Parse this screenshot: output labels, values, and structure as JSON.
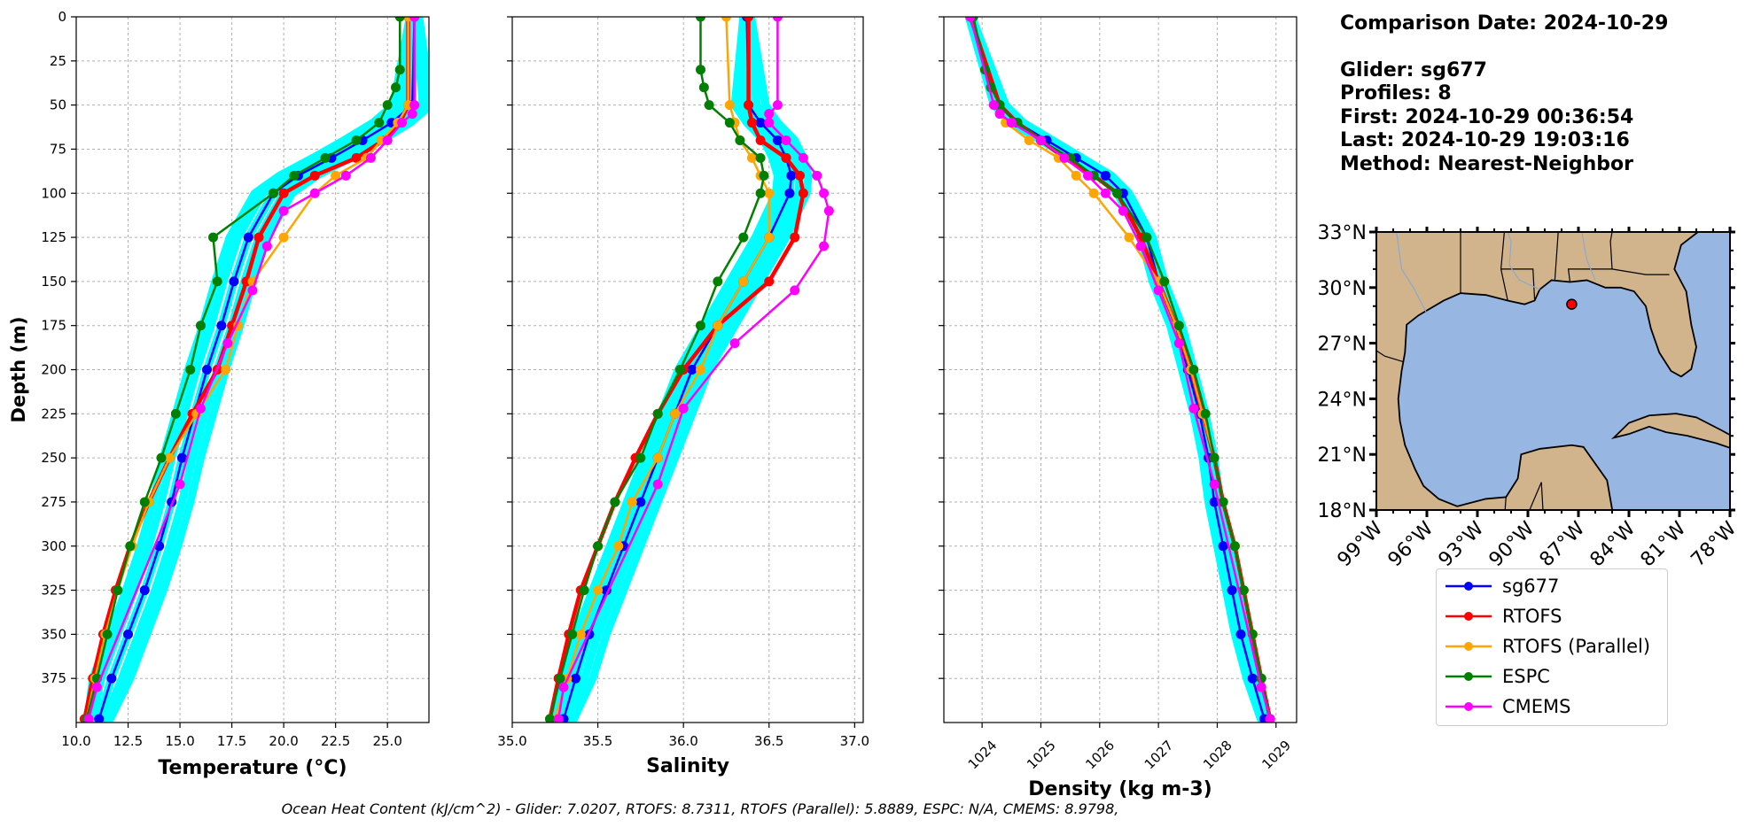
{
  "info": {
    "comparison": "Comparison Date: 2024-10-29",
    "glider": "Glider: sg677",
    "profiles": "Profiles: 8",
    "first": "First: 2024-10-29 00:36:54",
    "last": "Last: 2024-10-29 19:03:16",
    "method": "Method: Nearest-Neighbor"
  },
  "footer": "Ocean Heat Content (kJ/cm^2) - Glider: 7.0207,  RTOFS: 8.7311,  RTOFS (Parallel): 5.8889,  ESPC: N/A,  CMEMS: 8.9798,",
  "legend": [
    {
      "label": "sg677",
      "color": "#0000ff"
    },
    {
      "label": "RTOFS",
      "color": "#ff0000"
    },
    {
      "label": "RTOFS (Parallel)",
      "color": "#ffa500"
    },
    {
      "label": "ESPC",
      "color": "#008000"
    },
    {
      "label": "CMEMS",
      "color": "#ff00ff"
    }
  ],
  "colors": {
    "glider_profiles": "#00ffff",
    "land": "#d2b48c",
    "ocean": "#97b6e1",
    "glider_marker": "#ff0000"
  },
  "chart_data": [
    {
      "type": "line",
      "xlabel": "Temperature (°C)",
      "ylabel": "Depth (m)",
      "xlim": [
        10,
        27
      ],
      "ylim": [
        400,
        0
      ],
      "xticks": [
        "10.0",
        "12.5",
        "15.0",
        "17.5",
        "20.0",
        "22.5",
        "25.0"
      ],
      "yticks": [
        "0",
        "25",
        "50",
        "75",
        "100",
        "125",
        "150",
        "175",
        "200",
        "225",
        "250",
        "275",
        "300",
        "325",
        "350",
        "375"
      ],
      "grid": true,
      "series": [
        {
          "name": "sg677",
          "depth": [
            0,
            50,
            60,
            70,
            80,
            90,
            100,
            125,
            150,
            175,
            200,
            225,
            250,
            275,
            300,
            325,
            350,
            375,
            398
          ],
          "values": [
            26.3,
            26.2,
            25.2,
            23.8,
            22.3,
            20.7,
            19.5,
            18.3,
            17.6,
            17.0,
            16.3,
            15.7,
            15.1,
            14.6,
            14.0,
            13.3,
            12.5,
            11.7,
            11.1
          ]
        },
        {
          "name": "RTOFS",
          "depth": [
            0,
            50,
            60,
            70,
            80,
            90,
            100,
            125,
            150,
            175,
            200,
            225,
            250,
            275,
            300,
            325,
            350,
            375,
            398
          ],
          "values": [
            26.0,
            26.0,
            25.6,
            24.8,
            23.5,
            21.5,
            20.0,
            18.8,
            18.2,
            17.5,
            16.8,
            15.6,
            14.5,
            13.5,
            12.6,
            11.9,
            11.3,
            10.8,
            10.4
          ]
        },
        {
          "name": "RTOFS (Parallel)",
          "depth": [
            0,
            50,
            60,
            70,
            80,
            90,
            100,
            125,
            150,
            175,
            200,
            225,
            250,
            275,
            300,
            325,
            350,
            375,
            398
          ],
          "values": [
            26.0,
            26.0,
            25.5,
            24.7,
            24.0,
            22.5,
            21.5,
            20.0,
            18.5,
            17.8,
            17.2,
            15.8,
            14.5,
            13.5,
            12.7,
            12.0,
            11.4,
            10.9,
            10.5
          ]
        },
        {
          "name": "ESPC",
          "depth": [
            0,
            30,
            40,
            50,
            60,
            70,
            80,
            90,
            100,
            125,
            150,
            175,
            200,
            225,
            250,
            275,
            300,
            325,
            350,
            375,
            398
          ],
          "values": [
            25.6,
            25.6,
            25.4,
            25.0,
            24.6,
            23.5,
            22.0,
            20.5,
            19.5,
            16.6,
            16.8,
            16.0,
            15.5,
            14.8,
            14.1,
            13.3,
            12.6,
            12.0,
            11.5,
            11.0,
            10.5
          ]
        },
        {
          "name": "CMEMS",
          "depth": [
            0,
            50,
            55,
            60,
            70,
            80,
            90,
            100,
            110,
            130,
            155,
            185,
            222,
            265,
            380,
            398
          ],
          "values": [
            26.3,
            26.3,
            26.2,
            25.7,
            25.0,
            24.2,
            23.0,
            21.5,
            20.0,
            19.2,
            18.5,
            17.3,
            16.0,
            15.0,
            11.0,
            10.6
          ]
        }
      ]
    },
    {
      "type": "line",
      "xlabel": "Salinity",
      "xlim": [
        35.0,
        37.05
      ],
      "ylim": [
        400,
        0
      ],
      "xticks": [
        "35.0",
        "35.5",
        "36.0",
        "36.5",
        "37.0"
      ],
      "grid": true,
      "series": [
        {
          "name": "sg677",
          "depth": [
            0,
            50,
            60,
            70,
            80,
            90,
            100,
            125,
            150,
            175,
            200,
            225,
            250,
            275,
            300,
            325,
            350,
            375,
            398
          ],
          "values": [
            36.37,
            36.38,
            36.45,
            36.55,
            36.6,
            36.63,
            36.62,
            36.5,
            36.35,
            36.2,
            36.05,
            35.95,
            35.85,
            35.75,
            35.65,
            35.55,
            35.45,
            35.37,
            35.3
          ]
        },
        {
          "name": "RTOFS",
          "depth": [
            0,
            50,
            60,
            70,
            80,
            90,
            100,
            125,
            150,
            175,
            200,
            225,
            250,
            275,
            300,
            325,
            350,
            375,
            398
          ],
          "values": [
            36.38,
            36.38,
            36.4,
            36.45,
            36.6,
            36.68,
            36.7,
            36.65,
            36.5,
            36.2,
            36.0,
            35.85,
            35.72,
            35.6,
            35.5,
            35.4,
            35.33,
            35.27,
            35.22
          ]
        },
        {
          "name": "RTOFS (Parallel)",
          "depth": [
            0,
            50,
            60,
            70,
            80,
            90,
            100,
            125,
            150,
            175,
            200,
            225,
            250,
            275,
            300,
            325,
            350,
            375,
            398
          ],
          "values": [
            36.25,
            36.27,
            36.3,
            36.33,
            36.4,
            36.45,
            36.5,
            36.5,
            36.35,
            36.2,
            36.1,
            35.95,
            35.85,
            35.7,
            35.62,
            35.5,
            35.4,
            35.32,
            35.25
          ]
        },
        {
          "name": "ESPC",
          "depth": [
            0,
            30,
            40,
            50,
            60,
            70,
            80,
            90,
            100,
            125,
            150,
            175,
            200,
            225,
            250,
            275,
            300,
            325,
            350,
            375,
            398
          ],
          "values": [
            36.1,
            36.1,
            36.12,
            36.15,
            36.27,
            36.33,
            36.45,
            36.47,
            36.45,
            36.35,
            36.2,
            36.1,
            35.98,
            35.85,
            35.75,
            35.6,
            35.5,
            35.42,
            35.35,
            35.28,
            35.22
          ]
        },
        {
          "name": "CMEMS",
          "depth": [
            0,
            50,
            55,
            60,
            70,
            80,
            90,
            100,
            110,
            130,
            155,
            185,
            222,
            265,
            380,
            398
          ],
          "values": [
            36.55,
            36.55,
            36.5,
            36.5,
            36.6,
            36.7,
            36.78,
            36.82,
            36.85,
            36.82,
            36.65,
            36.3,
            36.0,
            35.85,
            35.3,
            35.27
          ]
        }
      ]
    },
    {
      "type": "line",
      "xlabel": "Density (kg m-3)",
      "xlim": [
        1023.35,
        1029.35
      ],
      "ylim": [
        400,
        0
      ],
      "xticks": [
        "1024",
        "1025",
        "1026",
        "1027",
        "1028",
        "1029"
      ],
      "grid": true,
      "series": [
        {
          "name": "sg677",
          "depth": [
            0,
            50,
            60,
            70,
            80,
            90,
            100,
            125,
            150,
            175,
            200,
            225,
            250,
            275,
            300,
            325,
            350,
            375,
            398
          ],
          "values": [
            1023.8,
            1024.3,
            1024.6,
            1025.1,
            1025.6,
            1026.1,
            1026.4,
            1026.8,
            1027.0,
            1027.3,
            1027.5,
            1027.7,
            1027.85,
            1027.95,
            1028.1,
            1028.25,
            1028.4,
            1028.6,
            1028.8
          ]
        },
        {
          "name": "RTOFS",
          "depth": [
            0,
            50,
            60,
            70,
            80,
            90,
            100,
            125,
            150,
            175,
            200,
            225,
            250,
            275,
            300,
            325,
            350,
            375,
            398
          ],
          "values": [
            1023.8,
            1024.3,
            1024.6,
            1025.0,
            1025.4,
            1025.9,
            1026.3,
            1026.7,
            1027.0,
            1027.3,
            1027.55,
            1027.75,
            1027.95,
            1028.1,
            1028.3,
            1028.45,
            1028.6,
            1028.75,
            1028.9
          ]
        },
        {
          "name": "RTOFS (Parallel)",
          "depth": [
            0,
            50,
            60,
            70,
            80,
            90,
            100,
            125,
            150,
            175,
            200,
            225,
            250,
            275,
            300,
            325,
            350,
            375,
            398
          ],
          "values": [
            1023.8,
            1024.2,
            1024.4,
            1024.8,
            1025.3,
            1025.6,
            1025.9,
            1026.5,
            1027.0,
            1027.3,
            1027.55,
            1027.75,
            1027.95,
            1028.1,
            1028.3,
            1028.45,
            1028.6,
            1028.75,
            1028.9
          ]
        },
        {
          "name": "ESPC",
          "depth": [
            0,
            30,
            40,
            50,
            60,
            70,
            80,
            90,
            100,
            125,
            150,
            175,
            200,
            225,
            250,
            275,
            300,
            325,
            350,
            375,
            398
          ],
          "values": [
            1023.85,
            1024.05,
            1024.15,
            1024.3,
            1024.6,
            1025.0,
            1025.5,
            1025.9,
            1026.3,
            1026.8,
            1027.1,
            1027.35,
            1027.6,
            1027.8,
            1027.95,
            1028.1,
            1028.3,
            1028.45,
            1028.6,
            1028.75,
            1028.9
          ]
        },
        {
          "name": "CMEMS",
          "depth": [
            0,
            50,
            55,
            60,
            70,
            80,
            90,
            100,
            110,
            130,
            155,
            185,
            222,
            265,
            380,
            398
          ],
          "values": [
            1023.8,
            1024.2,
            1024.3,
            1024.5,
            1025.0,
            1025.4,
            1025.8,
            1026.1,
            1026.4,
            1026.7,
            1027.0,
            1027.35,
            1027.6,
            1027.95,
            1028.75,
            1028.9
          ]
        }
      ]
    },
    {
      "type": "map",
      "xticks": [
        "99°W",
        "96°W",
        "93°W",
        "90°W",
        "87°W",
        "84°W",
        "81°W",
        "78°W"
      ],
      "yticks": [
        "33°N",
        "30°N",
        "27°N",
        "24°N",
        "21°N",
        "18°N"
      ],
      "lon_range": [
        -99,
        -78
      ],
      "lat_range": [
        18,
        33
      ],
      "glider_position": {
        "lon": -87.4,
        "lat": 29.1
      }
    }
  ]
}
